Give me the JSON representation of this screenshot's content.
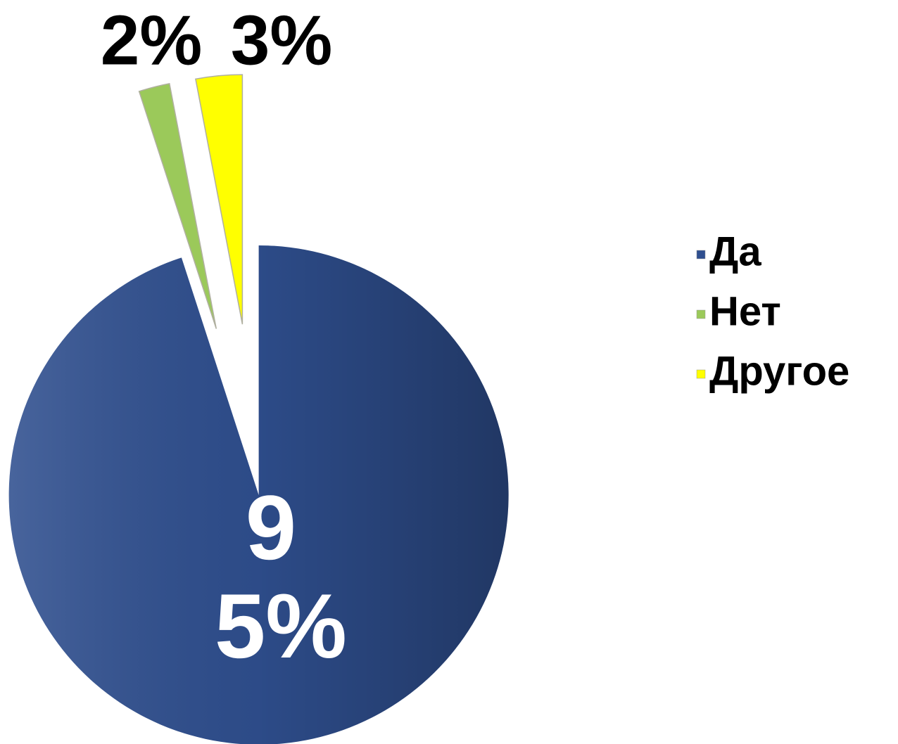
{
  "chart_data": {
    "type": "pie",
    "categories": [
      "Да",
      "Нет",
      "Другое"
    ],
    "values": [
      95,
      2,
      3
    ],
    "value_labels": [
      "95%",
      "2%",
      "3%"
    ],
    "colors": [
      "#2f4f8f",
      "#9bc95a",
      "#ffff00"
    ],
    "legend": "right"
  }
}
